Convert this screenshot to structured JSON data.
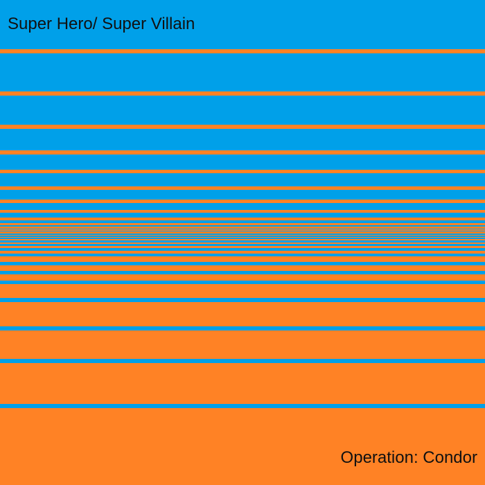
{
  "cover": {
    "artist": "Super Hero/ Super Villain",
    "album": "Operation: Condor"
  },
  "colors": {
    "blue": "#00A0E9",
    "orange": "#FF8225",
    "text": "#111111"
  }
}
